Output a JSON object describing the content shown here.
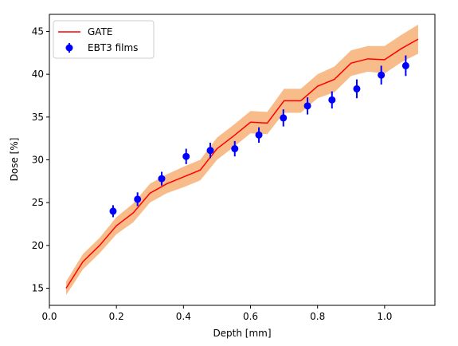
{
  "chart_data": {
    "type": "line",
    "title": "",
    "xlabel": "Depth [mm]",
    "ylabel": "Dose [%]",
    "xlim": [
      0.0,
      1.15
    ],
    "ylim": [
      13.0,
      47.0
    ],
    "xticks": [
      "0.0",
      "0.2",
      "0.4",
      "0.6",
      "0.8",
      "1.0"
    ],
    "yticks": [
      "15",
      "20",
      "25",
      "30",
      "35",
      "40",
      "45"
    ],
    "xtick_values": [
      0.0,
      0.2,
      0.4,
      0.6,
      0.8,
      1.0
    ],
    "ytick_values": [
      15,
      20,
      25,
      30,
      35,
      40,
      45
    ],
    "grid": false,
    "legend_position": "top-left",
    "series": [
      {
        "name": "GATE",
        "kind": "line-with-band",
        "color": "#ff0000",
        "band_color": "#f5a05a",
        "x": [
          0.05,
          0.1,
          0.15,
          0.2,
          0.25,
          0.3,
          0.35,
          0.4,
          0.45,
          0.5,
          0.55,
          0.6,
          0.65,
          0.7,
          0.75,
          0.8,
          0.85,
          0.9,
          0.95,
          1.0,
          1.05,
          1.1
        ],
        "y": [
          15.0,
          18.1,
          20.0,
          22.3,
          23.8,
          26.1,
          27.2,
          28.0,
          28.8,
          31.3,
          32.8,
          34.4,
          34.3,
          36.9,
          36.9,
          38.6,
          39.4,
          41.3,
          41.8,
          41.7,
          43.0,
          44.1
        ],
        "band_halfwidth": [
          0.8,
          0.9,
          0.9,
          1.0,
          1.1,
          1.1,
          1.1,
          1.2,
          1.2,
          1.3,
          1.3,
          1.3,
          1.3,
          1.4,
          1.4,
          1.4,
          1.5,
          1.5,
          1.5,
          1.6,
          1.6,
          1.7
        ]
      },
      {
        "name": "EBT3 films",
        "kind": "errorbar",
        "color": "#0000ff",
        "x": [
          0.19,
          0.263,
          0.335,
          0.408,
          0.48,
          0.553,
          0.625,
          0.698,
          0.77,
          0.843,
          0.917,
          0.99,
          1.063
        ],
        "y": [
          24.0,
          25.4,
          27.8,
          30.4,
          31.1,
          31.3,
          32.9,
          34.9,
          36.3,
          37.0,
          38.3,
          39.9,
          41.0
        ],
        "yerr": [
          0.7,
          0.8,
          0.8,
          0.9,
          0.9,
          0.9,
          0.9,
          1.0,
          1.0,
          1.0,
          1.1,
          1.1,
          1.2
        ]
      }
    ]
  }
}
